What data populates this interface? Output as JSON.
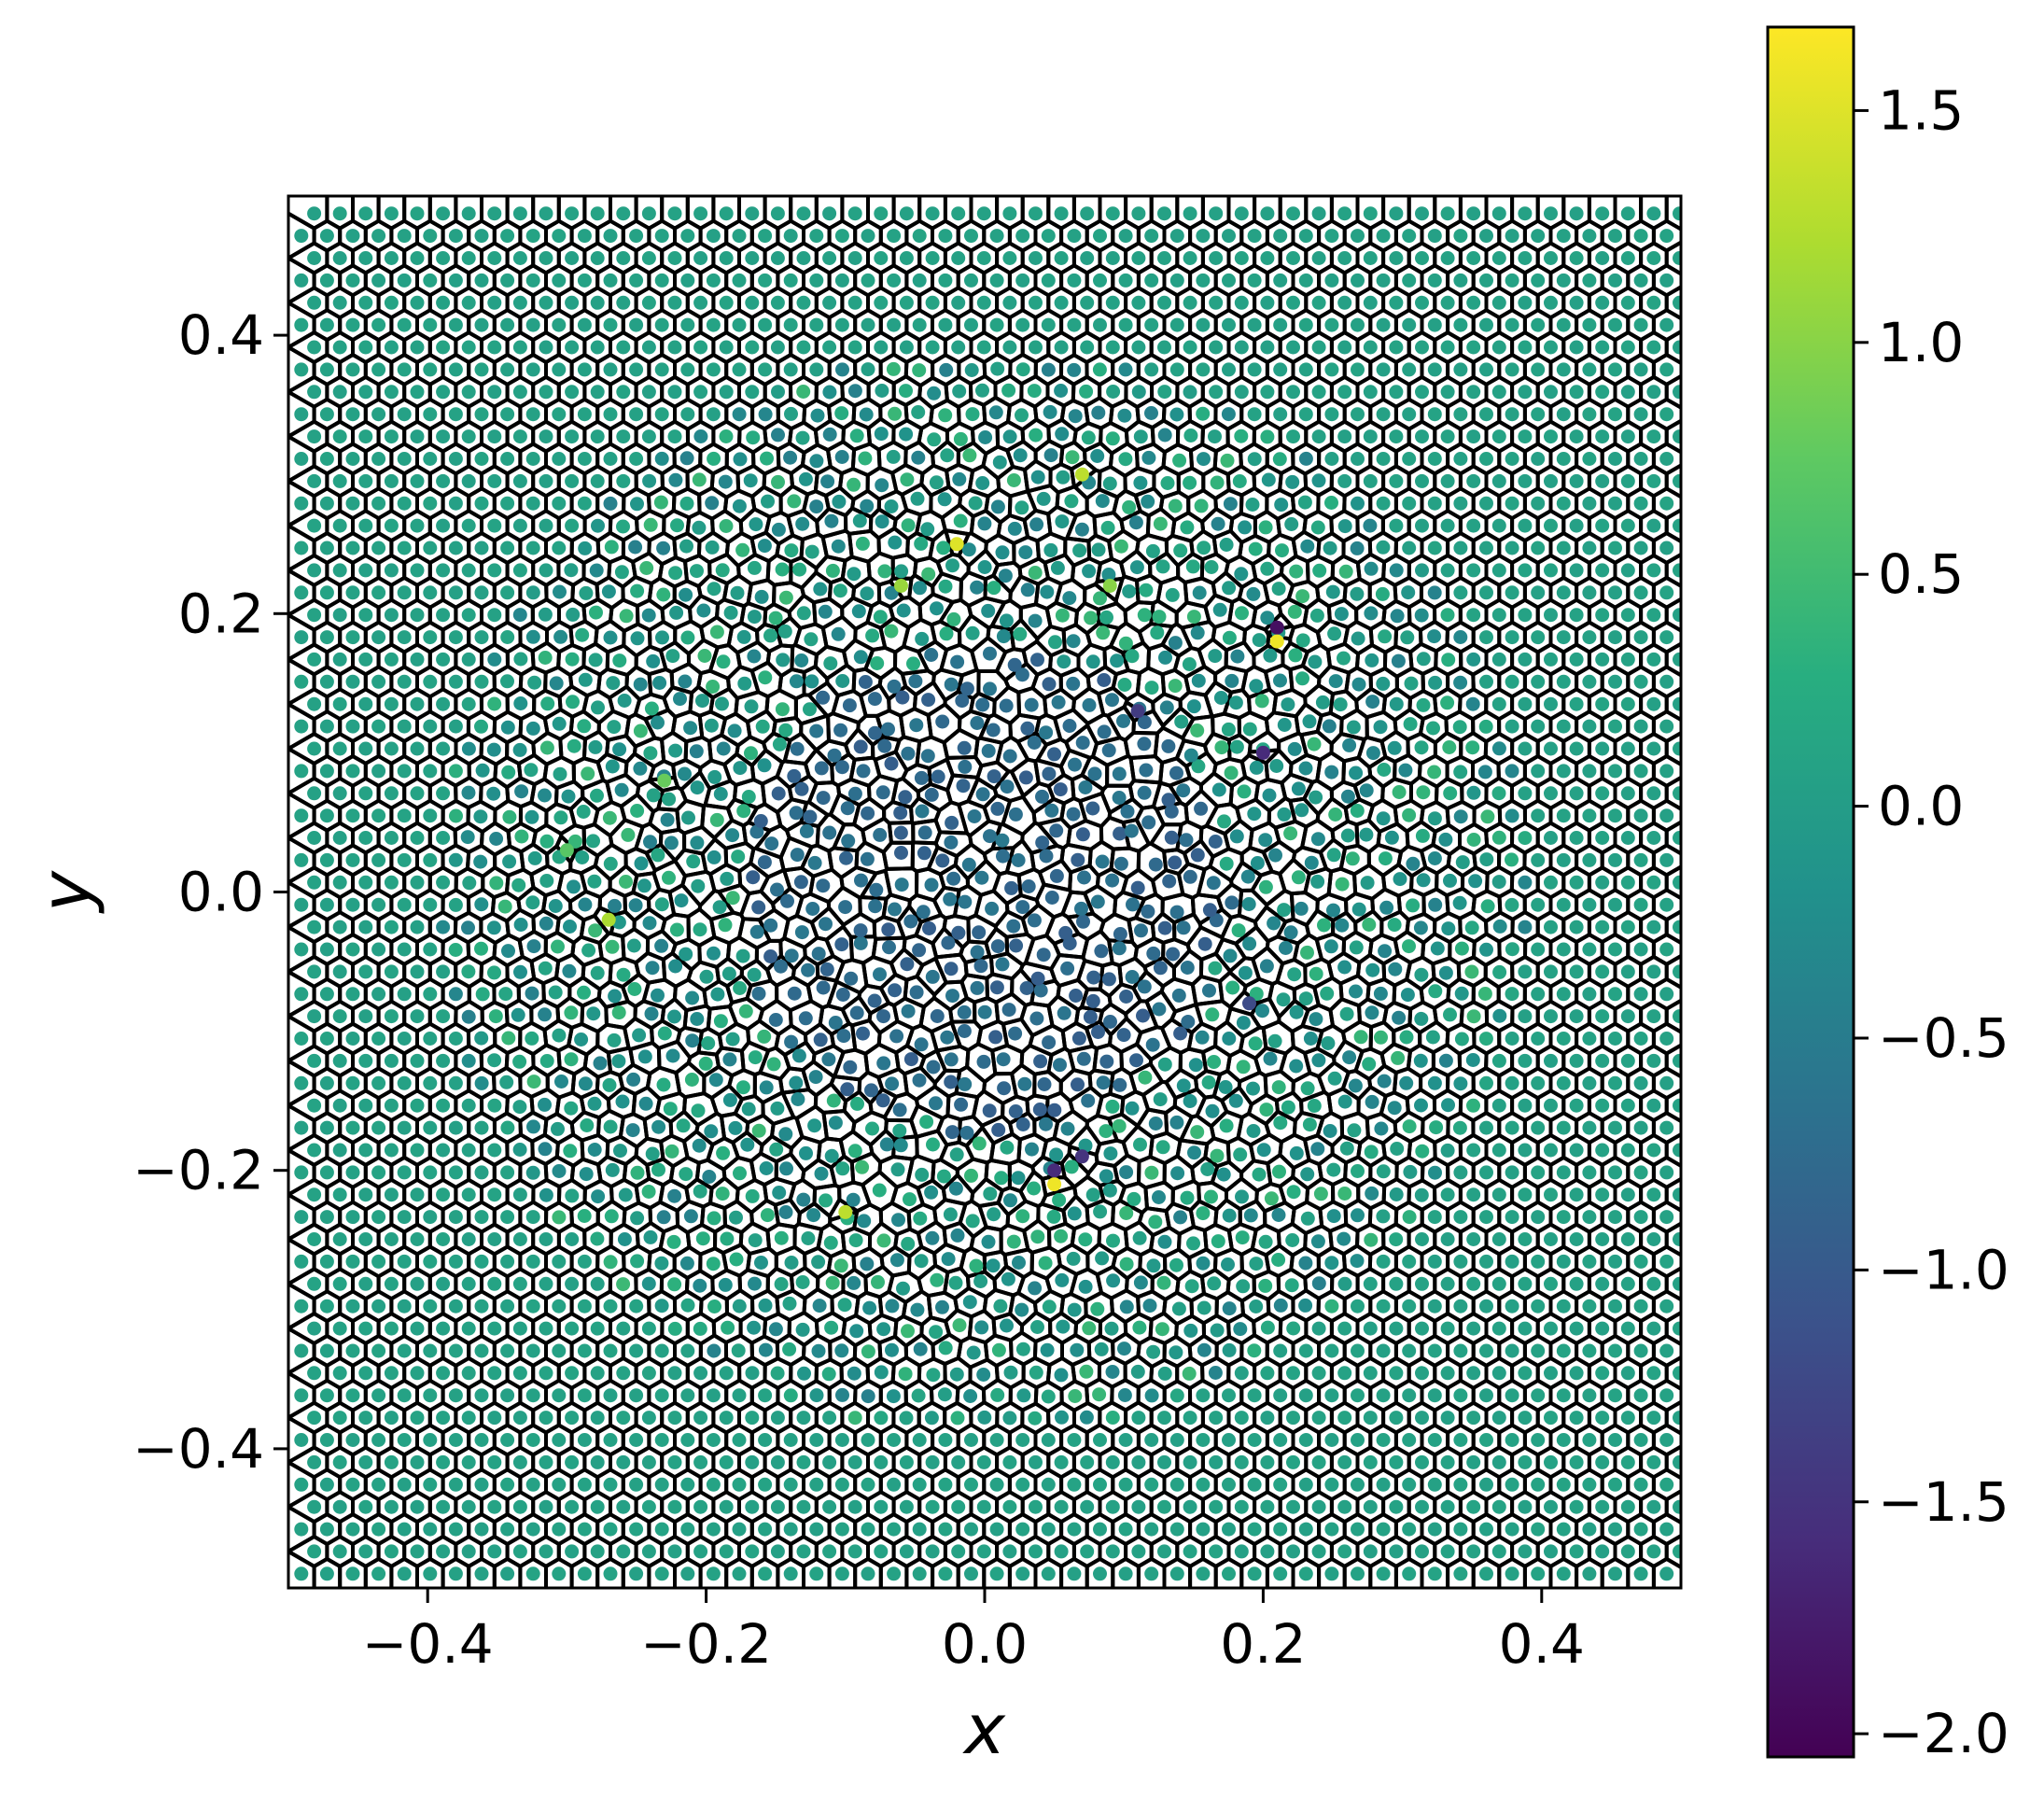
{
  "chart_data": {
    "type": "scatter",
    "subtype": "voronoi-tessellation-colored-scatter",
    "title": "",
    "xlabel": "x",
    "ylabel": "y",
    "xlim": [
      -0.5,
      0.5
    ],
    "ylim": [
      -0.5,
      0.5
    ],
    "x_ticks": [
      -0.4,
      -0.2,
      0.0,
      0.2,
      0.4
    ],
    "y_ticks": [
      -0.4,
      -0.2,
      0.0,
      0.2,
      0.4
    ],
    "x_tick_labels": [
      "−0.4",
      "−0.2",
      "0.0",
      "0.2",
      "0.4"
    ],
    "y_tick_labels": [
      "−0.4",
      "−0.2",
      "0.0",
      "0.2",
      "0.4"
    ],
    "grid": false,
    "point_grid_spacing": 0.0185,
    "disordered_region": {
      "shape": "circle",
      "center": [
        0.0,
        0.0
      ],
      "radius": 0.39
    },
    "highlighted_points": [
      {
        "x": 0.21,
        "y": 0.19,
        "value": -1.9
      },
      {
        "x": 0.21,
        "y": 0.18,
        "value": 1.6
      },
      {
        "x": -0.02,
        "y": 0.25,
        "value": 1.5
      },
      {
        "x": 0.07,
        "y": 0.3,
        "value": 1.3
      },
      {
        "x": 0.05,
        "y": -0.21,
        "value": 1.6
      },
      {
        "x": -0.1,
        "y": -0.23,
        "value": 1.3
      },
      {
        "x": -0.27,
        "y": -0.02,
        "value": 1.2
      },
      {
        "x": -0.06,
        "y": 0.22,
        "value": 1.1
      },
      {
        "x": 0.09,
        "y": 0.22,
        "value": 1.0
      },
      {
        "x": 0.2,
        "y": 0.1,
        "value": -1.6
      },
      {
        "x": 0.07,
        "y": -0.19,
        "value": -1.5
      },
      {
        "x": 0.05,
        "y": -0.2,
        "value": -1.6
      },
      {
        "x": 0.19,
        "y": -0.08,
        "value": -1.2
      },
      {
        "x": 0.11,
        "y": 0.13,
        "value": -1.4
      },
      {
        "x": -0.23,
        "y": 0.08,
        "value": 0.8
      },
      {
        "x": -0.3,
        "y": 0.03,
        "value": 0.7
      }
    ],
    "colorbar": {
      "colormap": "viridis",
      "vmin": -2.05,
      "vmax": 1.68,
      "ticks": [
        1.5,
        1.0,
        0.5,
        0.0,
        -0.5,
        -1.0,
        -1.5,
        -2.0
      ],
      "tick_labels": [
        "1.5",
        "1.0",
        "0.5",
        "0.0",
        "−0.5",
        "−1.0",
        "−1.5",
        "−2.0"
      ]
    }
  }
}
